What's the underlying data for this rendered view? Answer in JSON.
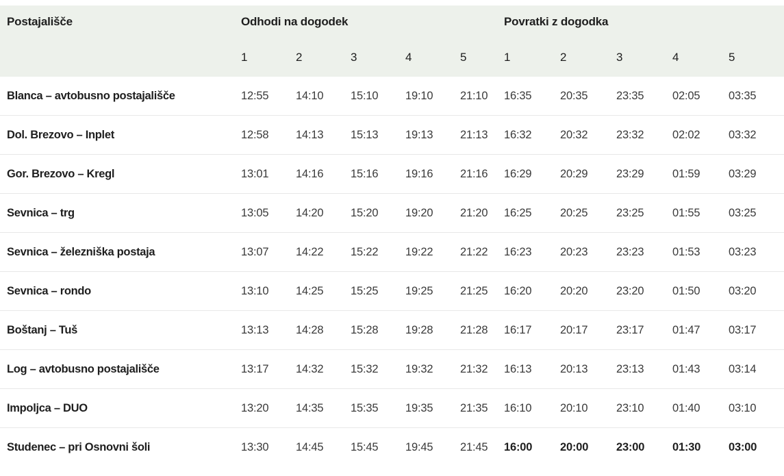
{
  "table": {
    "station_header": "Postajališče",
    "groups": [
      {
        "label": "Odhodi na dogodek",
        "columns": [
          "1",
          "2",
          "3",
          "4",
          "5"
        ]
      },
      {
        "label": "Povratki z dogodka",
        "columns": [
          "1",
          "2",
          "3",
          "4",
          "5"
        ]
      }
    ],
    "rows": [
      {
        "station": "Blanca – avtobusno postajališče",
        "departures": [
          "12:55",
          "14:10",
          "15:10",
          "19:10",
          "21:10"
        ],
        "returns": [
          "16:35",
          "20:35",
          "23:35",
          "02:05",
          "03:35"
        ],
        "returns_emphasized": false
      },
      {
        "station": "Dol. Brezovo – Inplet",
        "departures": [
          "12:58",
          "14:13",
          "15:13",
          "19:13",
          "21:13"
        ],
        "returns": [
          "16:32",
          "20:32",
          "23:32",
          "02:02",
          "03:32"
        ],
        "returns_emphasized": false
      },
      {
        "station": "Gor. Brezovo – Kregl",
        "departures": [
          "13:01",
          "14:16",
          "15:16",
          "19:16",
          "21:16"
        ],
        "returns": [
          "16:29",
          "20:29",
          "23:29",
          "01:59",
          "03:29"
        ],
        "returns_emphasized": false
      },
      {
        "station": "Sevnica – trg",
        "departures": [
          "13:05",
          "14:20",
          "15:20",
          "19:20",
          "21:20"
        ],
        "returns": [
          "16:25",
          "20:25",
          "23:25",
          "01:55",
          "03:25"
        ],
        "returns_emphasized": false
      },
      {
        "station": "Sevnica – železniška postaja",
        "departures": [
          "13:07",
          "14:22",
          "15:22",
          "19:22",
          "21:22"
        ],
        "returns": [
          "16:23",
          "20:23",
          "23:23",
          "01:53",
          "03:23"
        ],
        "returns_emphasized": false
      },
      {
        "station": "Sevnica – rondo",
        "departures": [
          "13:10",
          "14:25",
          "15:25",
          "19:25",
          "21:25"
        ],
        "returns": [
          "16:20",
          "20:20",
          "23:20",
          "01:50",
          "03:20"
        ],
        "returns_emphasized": false
      },
      {
        "station": "Boštanj – Tuš",
        "departures": [
          "13:13",
          "14:28",
          "15:28",
          "19:28",
          "21:28"
        ],
        "returns": [
          "16:17",
          "20:17",
          "23:17",
          "01:47",
          "03:17"
        ],
        "returns_emphasized": false
      },
      {
        "station": "Log – avtobusno postajališče",
        "departures": [
          "13:17",
          "14:32",
          "15:32",
          "19:32",
          "21:32"
        ],
        "returns": [
          "16:13",
          "20:13",
          "23:13",
          "01:43",
          "03:14"
        ],
        "returns_emphasized": false
      },
      {
        "station": "Impoljca – DUO",
        "departures": [
          "13:20",
          "14:35",
          "15:35",
          "19:35",
          "21:35"
        ],
        "returns": [
          "16:10",
          "20:10",
          "23:10",
          "01:40",
          "03:10"
        ],
        "returns_emphasized": false
      },
      {
        "station": "Studenec – pri Osnovni šoli",
        "departures": [
          "13:30",
          "14:45",
          "15:45",
          "19:45",
          "21:45"
        ],
        "returns": [
          "16:00",
          "20:00",
          "23:00",
          "01:30",
          "03:00"
        ],
        "returns_emphasized": true
      }
    ]
  },
  "colors": {
    "header_bg": "#edf1eb",
    "divider": "#e8e8e8",
    "text_strong": "#1e1e1e",
    "text_time": "#3a3a3a"
  }
}
